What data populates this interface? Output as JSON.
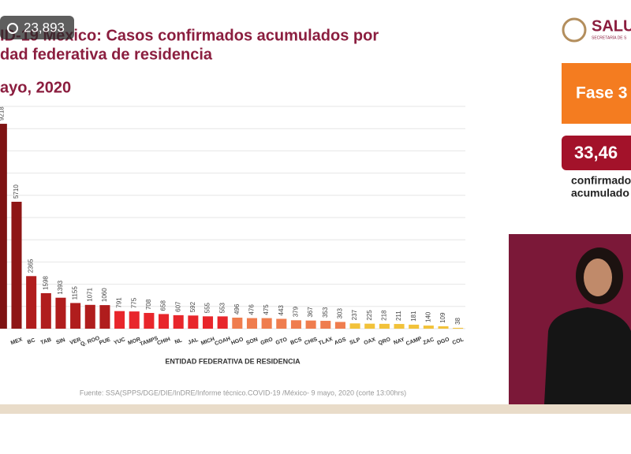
{
  "chart_data": {
    "type": "bar",
    "title_lines": [
      "ID-19 México: Casos confirmados acumulados por",
      "dad federativa de residencia",
      "ayo, 2020"
    ],
    "x_label": "ENTIDAD FEDERATIVA DE RESIDENCIA",
    "source": "Fuente: SSA(SPPS/DGE/DIE/InDRE/Informe técnico.COVID-19 /México- 9 mayo, 2020 (corte 13:00hrs)",
    "categories": [
      null,
      "MEX",
      "BC",
      "TAB",
      "SIN",
      "VER",
      "Q. ROO",
      "PUE",
      "YUC",
      "MOR",
      "TAMPS",
      "CHIH",
      "NL",
      "JAL",
      "MICH",
      "COAH",
      "HGO",
      "SON",
      "GRO",
      "GTO",
      "BCS",
      "CHIS",
      "TLAX",
      "AGS",
      "SLP",
      "OAX",
      "QRO",
      "NAY",
      "CAMP",
      "ZAC",
      "DGO",
      "COL"
    ],
    "values": [
      9218,
      5710,
      2365,
      1598,
      1393,
      1155,
      1071,
      1060,
      791,
      775,
      708,
      658,
      607,
      592,
      555,
      553,
      496,
      476,
      475,
      443,
      379,
      367,
      353,
      303,
      237,
      225,
      218,
      211,
      181,
      140,
      109,
      38
    ],
    "colors": [
      "#7e1313",
      "#8e1616",
      "#b01d1d",
      "#b01d1d",
      "#b01d1d",
      "#b01d1d",
      "#b01d1d",
      "#b01d1d",
      "#e8262b",
      "#e8262b",
      "#e8262b",
      "#e8262b",
      "#e8262b",
      "#e8262b",
      "#e8262b",
      "#e8262b",
      "#ef7d4e",
      "#ef7d4e",
      "#ef7d4e",
      "#ef7d4e",
      "#ef7d4e",
      "#ef7d4e",
      "#ef7d4e",
      "#ef7d4e",
      "#f2c23a",
      "#f2c23a",
      "#f2c23a",
      "#f2c23a",
      "#f2c23a",
      "#f2c23a",
      "#f2c23a",
      "#f2c23a"
    ],
    "ylim": [
      0,
      10000
    ],
    "yticks": [
      0,
      1000,
      2000,
      3000,
      4000,
      5000,
      6000,
      7000,
      8000,
      9000,
      10000
    ],
    "show_ytick_labels": false,
    "grid": true
  },
  "overlay": {
    "views": "23,893"
  },
  "sidebar": {
    "logo": "SALU",
    "logo_sub": "SECRETARÍA DE S",
    "phase": "Fase 3",
    "total": "33,46",
    "total_caption": [
      "confirmado",
      "acumulado"
    ]
  }
}
